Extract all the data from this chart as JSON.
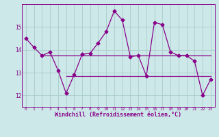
{
  "background_color": "#cce8e8",
  "line_color": "#880088",
  "grid_color": "#aacccc",
  "xlabel": "Windchill (Refroidissement éolien,°C)",
  "xlabel_fontsize": 6.0,
  "xlim": [
    -0.5,
    23.5
  ],
  "ylim": [
    11.5,
    16.0
  ],
  "yticks": [
    12,
    13,
    14,
    15
  ],
  "xtick_labels": [
    "0",
    "1",
    "2",
    "3",
    "4",
    "5",
    "6",
    "7",
    "8",
    "9",
    "10",
    "11",
    "12",
    "13",
    "14",
    "15",
    "16",
    "17",
    "18",
    "19",
    "20",
    "21",
    "22",
    "23"
  ],
  "series1_x": [
    0,
    1,
    2,
    3,
    4,
    5,
    6,
    7,
    8,
    9,
    10,
    11,
    12,
    13,
    14,
    15,
    16,
    17,
    18,
    19,
    20,
    21,
    22,
    23
  ],
  "series1_y": [
    14.5,
    14.1,
    13.75,
    13.9,
    13.1,
    12.1,
    12.9,
    13.8,
    13.85,
    14.3,
    14.8,
    15.7,
    15.3,
    13.7,
    13.75,
    12.85,
    15.2,
    15.1,
    13.9,
    13.75,
    13.75,
    13.5,
    12.0,
    12.7
  ],
  "series2_x": [
    2,
    23
  ],
  "series2_y": [
    13.75,
    13.75
  ],
  "series3_x": [
    5,
    23
  ],
  "series3_y": [
    12.85,
    12.85
  ],
  "marker": "D",
  "marker_size": 2.5,
  "linewidth": 0.9
}
